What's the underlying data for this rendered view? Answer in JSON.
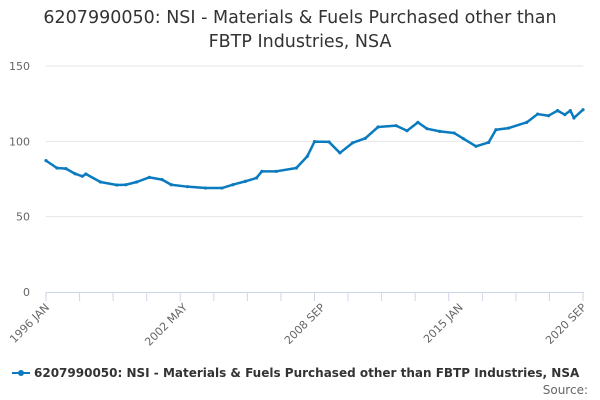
{
  "chart_data": {
    "type": "line",
    "title": "6207990050: NSI - Materials & Fuels Purchased other than FBTP Industries, NSA",
    "title_lines": [
      "6207990050: NSI - Materials & Fuels Purchased other than",
      "FBTP Industries, NSA"
    ],
    "xlabel": "",
    "ylabel": "",
    "xlim": [
      "1996-01",
      "2020-09"
    ],
    "ylim": [
      0,
      150
    ],
    "y_ticks": [
      "0",
      "50",
      "100",
      "150"
    ],
    "x_ticks": [
      {
        "label": "1996 JAN",
        "date": "1996-01"
      },
      {
        "label": "2002 MAY",
        "date": "2002-05"
      },
      {
        "label": "2008 SEP",
        "date": "2008-09"
      },
      {
        "label": "2015 JAN",
        "date": "2015-01"
      },
      {
        "label": "2020 SEP",
        "date": "2020-09"
      }
    ],
    "grid": true,
    "legend_position": "bottom-left",
    "color": "#0a7bbf",
    "series": [
      {
        "name": "6207990050: NSI - Materials & Fuels Purchased other than FBTP Industries, NSA",
        "x": [
          "1996-01",
          "1996-07",
          "1996-12",
          "1997-05",
          "1997-09",
          "1997-11",
          "1998-07",
          "1999-04",
          "1999-09",
          "2000-03",
          "2000-10",
          "2001-05",
          "2001-10",
          "2002-07",
          "2003-05",
          "2004-02",
          "2004-08",
          "2005-03",
          "2005-09",
          "2005-12",
          "2006-08",
          "2007-07",
          "2008-01",
          "2008-05",
          "2009-01",
          "2009-07",
          "2010-02",
          "2010-09",
          "2011-04",
          "2012-02",
          "2012-08",
          "2013-02",
          "2013-07",
          "2014-02",
          "2014-10",
          "2015-03",
          "2015-10",
          "2016-05",
          "2016-09",
          "2017-04",
          "2018-02",
          "2018-08",
          "2019-02",
          "2019-07",
          "2019-11",
          "2020-02",
          "2020-04",
          "2020-09"
        ],
        "y": [
          87.2,
          82.3,
          81.9,
          78.5,
          76.8,
          78.3,
          73.0,
          71.0,
          71.2,
          73.0,
          76.1,
          74.6,
          71.2,
          69.9,
          69.0,
          69.0,
          71.2,
          73.5,
          75.7,
          80.1,
          80.1,
          82.3,
          90.0,
          99.8,
          99.6,
          92.3,
          99.0,
          102.0,
          109.5,
          110.4,
          107.0,
          112.6,
          108.4,
          106.6,
          105.5,
          101.8,
          96.7,
          99.3,
          107.7,
          108.8,
          112.6,
          118.1,
          117.0,
          120.4,
          117.7,
          120.4,
          115.5,
          121.0
        ]
      }
    ]
  },
  "legend": {
    "label": "6207990050: NSI - Materials & Fuels Purchased other than FBTP Industries, NSA"
  },
  "source": {
    "label": "Source:"
  }
}
